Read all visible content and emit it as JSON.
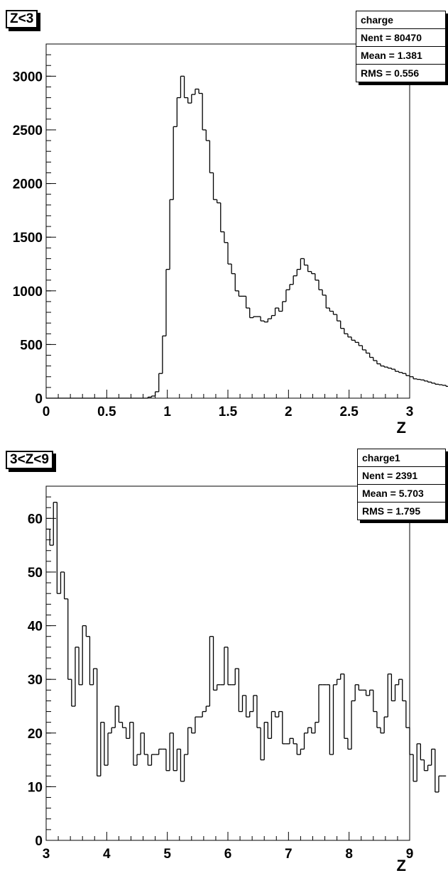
{
  "chart_data": [
    {
      "type": "bar",
      "title": "Z<3",
      "xlabel": "Z",
      "ylabel": "",
      "xlim": [
        0,
        3
      ],
      "ylim": [
        0,
        3300
      ],
      "bin_width": 0.03,
      "x_ticks": [
        "0",
        "0.5",
        "1",
        "1.5",
        "2",
        "2.5",
        "3"
      ],
      "y_ticks": [
        "0",
        "500",
        "1000",
        "1500",
        "2000",
        "2500",
        "3000"
      ],
      "stats": {
        "name": "charge",
        "entries": "Nent = 80470",
        "mean": "Mean  =  1.381",
        "rms": "RMS   = 0.556"
      },
      "values": [
        0,
        0,
        0,
        0,
        0,
        0,
        0,
        0,
        0,
        0,
        0,
        0,
        0,
        0,
        0,
        0,
        0,
        0,
        0,
        0,
        0,
        0,
        0,
        0,
        0,
        0,
        0,
        0,
        10,
        20,
        60,
        230,
        580,
        1200,
        1850,
        2530,
        2800,
        3000,
        2800,
        2750,
        2830,
        2880,
        2840,
        2500,
        2400,
        2100,
        1850,
        1820,
        1550,
        1450,
        1250,
        1160,
        1000,
        950,
        950,
        840,
        750,
        760,
        760,
        720,
        710,
        740,
        770,
        840,
        810,
        900,
        1010,
        1060,
        1140,
        1200,
        1300,
        1240,
        1180,
        1160,
        1100,
        1010,
        960,
        840,
        810,
        780,
        720,
        650,
        600,
        570,
        540,
        520,
        490,
        450,
        420,
        380,
        350,
        320,
        300,
        290,
        280,
        270,
        250,
        240,
        230,
        210,
        200,
        180,
        175,
        170,
        160,
        150,
        140,
        130,
        125,
        120,
        110,
        100,
        90,
        85,
        80,
        75
      ]
    },
    {
      "type": "bar",
      "title": "3<Z<9",
      "xlabel": "Z",
      "ylabel": "",
      "xlim": [
        3,
        9
      ],
      "ylim": [
        0,
        66
      ],
      "bin_width": 0.06,
      "x_ticks": [
        "3",
        "4",
        "5",
        "6",
        "7",
        "8",
        "9"
      ],
      "y_ticks": [
        "0",
        "10",
        "20",
        "30",
        "40",
        "50",
        "60"
      ],
      "stats": {
        "name": "charge1",
        "entries": "Nent = 2391",
        "mean": "Mean  =  5.703",
        "rms": "RMS   =  1.795"
      },
      "values": [
        58,
        55,
        63,
        46,
        50,
        45,
        30,
        25,
        36,
        29,
        40,
        38,
        29,
        32,
        12,
        22,
        14,
        20,
        21,
        25,
        22,
        21,
        19,
        22,
        14,
        16,
        20,
        16,
        14,
        16,
        16,
        17,
        17,
        13,
        20,
        13,
        17,
        11,
        16,
        21,
        20,
        23,
        23,
        24,
        25,
        38,
        28,
        29,
        29,
        36,
        29,
        29,
        32,
        24,
        27,
        23,
        24,
        27,
        21,
        15,
        22,
        19,
        24,
        23,
        24,
        18,
        18,
        19,
        18,
        16,
        17,
        20,
        21,
        20,
        22,
        29,
        29,
        29,
        16,
        29,
        30,
        31,
        19,
        17,
        26,
        29,
        28,
        28,
        27,
        28,
        24,
        21,
        20,
        23,
        31,
        26,
        29,
        30,
        26,
        21,
        16,
        11,
        18,
        15,
        13,
        14,
        17,
        9,
        12,
        12
      ]
    }
  ]
}
